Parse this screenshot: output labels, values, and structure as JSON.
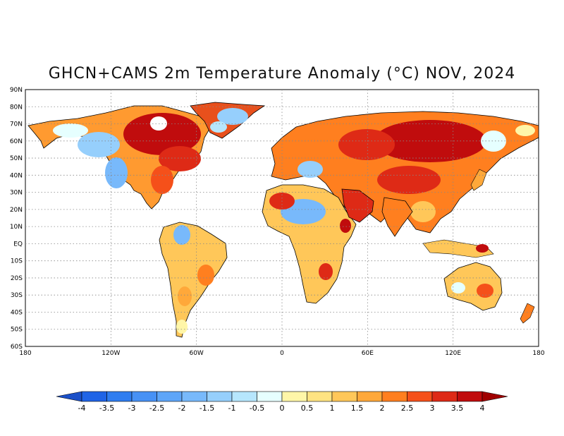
{
  "title": "GHCN+CAMS 2m Temperature Anomaly (°C) NOV, 2024",
  "map": {
    "lat_labels": [
      "90N",
      "80N",
      "70N",
      "60N",
      "50N",
      "40N",
      "30N",
      "20N",
      "10N",
      "EQ",
      "10S",
      "20S",
      "30S",
      "40S",
      "50S",
      "60S"
    ],
    "lon_labels": [
      "180",
      "120W",
      "60W",
      "0",
      "60E",
      "120E",
      "180"
    ]
  },
  "colorbar": {
    "labels": [
      "-4",
      "-3.5",
      "-3",
      "-2.5",
      "-2",
      "-1.5",
      "-1",
      "-0.5",
      "0",
      "0.5",
      "1",
      "1.5",
      "2",
      "2.5",
      "3",
      "3.5",
      "4"
    ],
    "colors": [
      "#1f64e6",
      "#2f7df0",
      "#4791f5",
      "#5ea5f8",
      "#78b9fb",
      "#96cffc",
      "#b6e6fd",
      "#e6ffff",
      "#fff6a8",
      "#ffe382",
      "#ffc759",
      "#ffa83a",
      "#ff7f1f",
      "#f5501a",
      "#de2a16",
      "#c00c0d"
    ],
    "low_arrow_color": "#1b50c8",
    "high_arrow_color": "#a00000"
  }
}
